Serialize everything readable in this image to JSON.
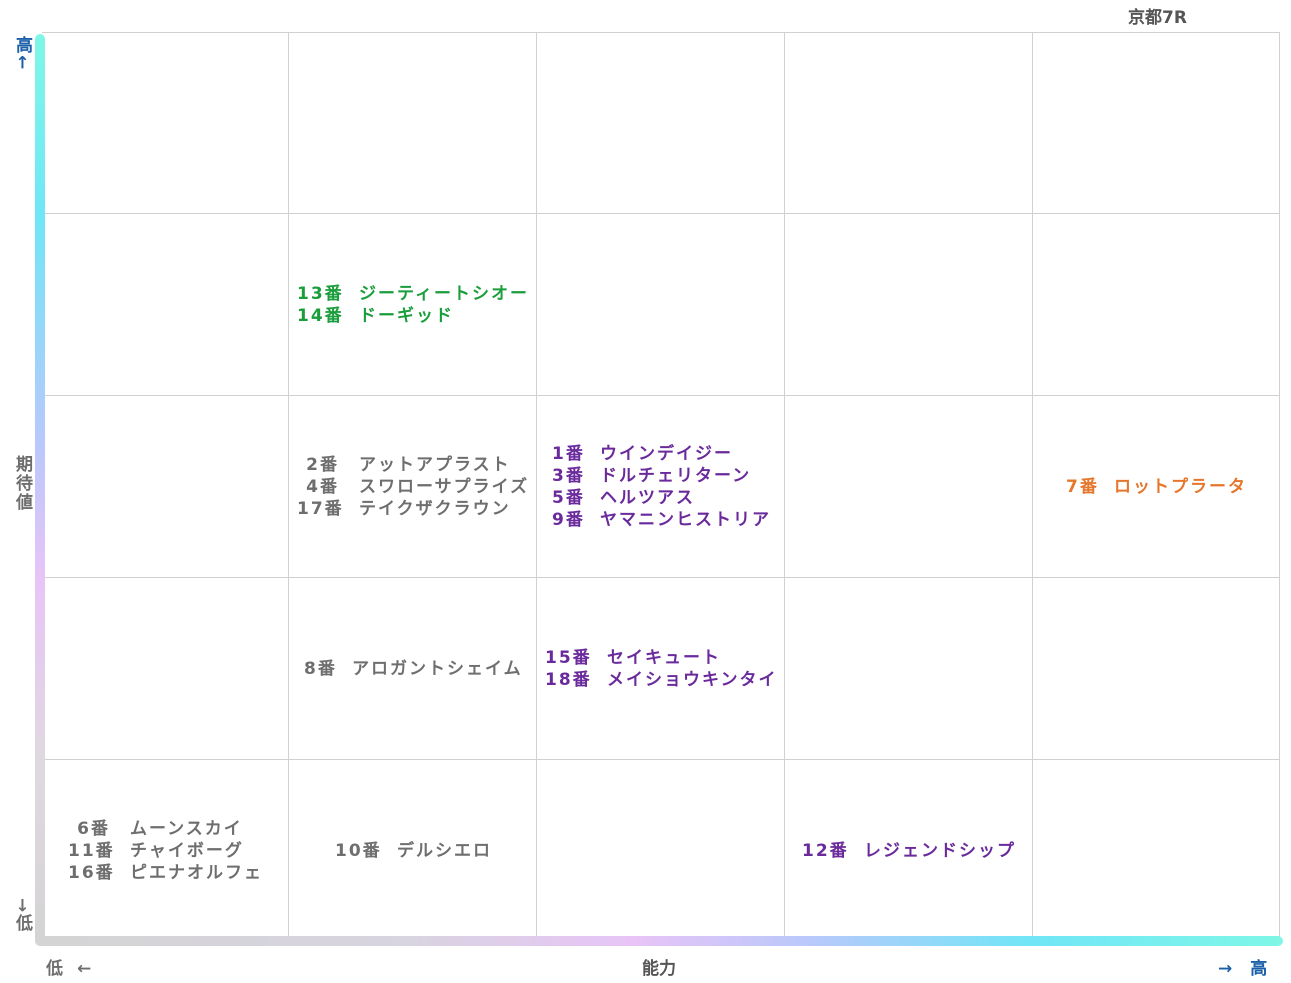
{
  "race_label": "京都7R",
  "y_axis": {
    "title": "期待値",
    "high_label": "高",
    "high_arrow": "←",
    "low_label": "低",
    "low_arrow": "→"
  },
  "x_axis": {
    "title": "能力",
    "low_label": "低",
    "low_arrow": "←",
    "high_label": "高",
    "high_arrow": "→"
  },
  "colors": {
    "gray": "#6e6e6e",
    "green": "#1a9e3c",
    "purple": "#6a2a9c",
    "orange": "#e5762b",
    "axis_text": "#1a5fa8"
  },
  "chart_data": {
    "type": "table",
    "x_axis": "能力",
    "y_axis": "期待値",
    "columns": 5,
    "rows": 5,
    "cells": [
      {
        "ability": 2,
        "expectation": 4,
        "color": "green",
        "horses": [
          {
            "num": "13番",
            "name": "ジーティートシオー"
          },
          {
            "num": "14番",
            "name": "ドーギッド"
          }
        ]
      },
      {
        "ability": 2,
        "expectation": 3,
        "color": "gray",
        "horses": [
          {
            "num": "2番",
            "name": "アットアプラスト"
          },
          {
            "num": "4番",
            "name": "スワローサプライズ"
          },
          {
            "num": "17番",
            "name": "テイクザクラウン"
          }
        ]
      },
      {
        "ability": 3,
        "expectation": 3,
        "color": "purple",
        "horses": [
          {
            "num": "1番",
            "name": "ウインデイジー"
          },
          {
            "num": "3番",
            "name": "ドルチェリターン"
          },
          {
            "num": "5番",
            "name": "ヘルツアス"
          },
          {
            "num": "9番",
            "name": "ヤマニンヒストリア"
          }
        ]
      },
      {
        "ability": 5,
        "expectation": 3,
        "color": "orange",
        "horses": [
          {
            "num": "7番",
            "name": "ロットプラータ"
          }
        ]
      },
      {
        "ability": 2,
        "expectation": 2,
        "color": "gray",
        "horses": [
          {
            "num": "8番",
            "name": "アロガントシェイム"
          }
        ]
      },
      {
        "ability": 3,
        "expectation": 2,
        "color": "purple",
        "horses": [
          {
            "num": "15番",
            "name": "セイキュート"
          },
          {
            "num": "18番",
            "name": "メイショウキンタイ"
          }
        ]
      },
      {
        "ability": 1,
        "expectation": 1,
        "color": "gray",
        "horses": [
          {
            "num": "6番",
            "name": "ムーンスカイ"
          },
          {
            "num": "11番",
            "name": "チャイボーグ"
          },
          {
            "num": "16番",
            "name": "ピエナオルフェ"
          }
        ]
      },
      {
        "ability": 2,
        "expectation": 1,
        "color": "gray",
        "horses": [
          {
            "num": "10番",
            "name": "デルシエロ"
          }
        ]
      },
      {
        "ability": 4,
        "expectation": 1,
        "color": "purple",
        "horses": [
          {
            "num": "12番",
            "name": "レジェンドシップ"
          }
        ]
      }
    ]
  }
}
